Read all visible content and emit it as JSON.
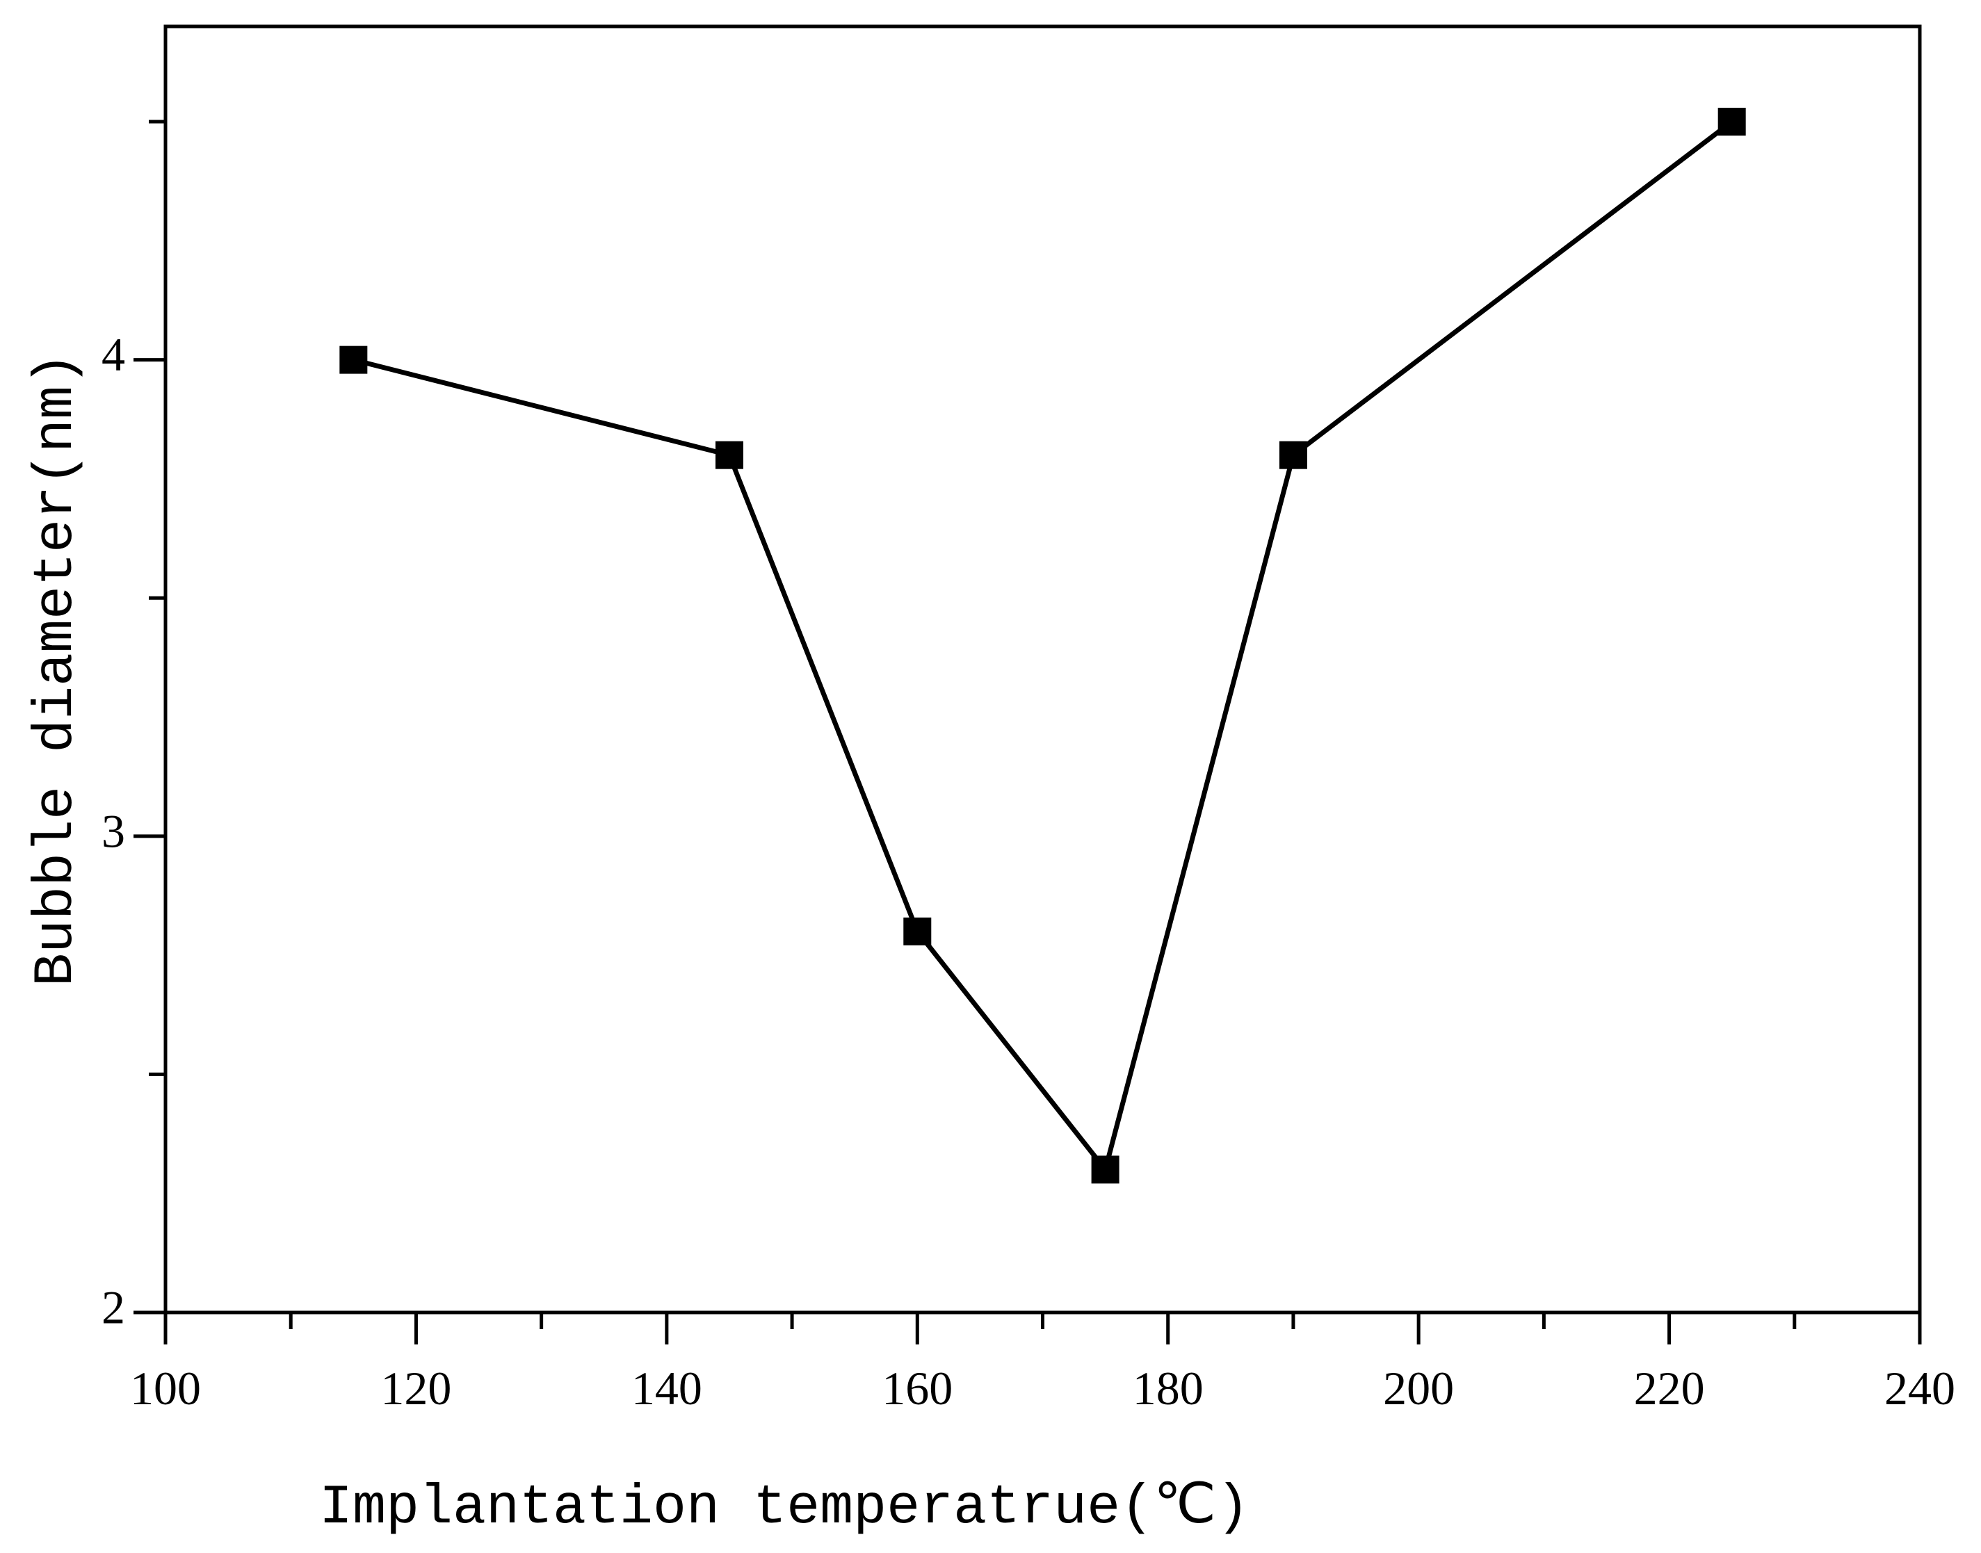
{
  "chart_data": {
    "type": "line",
    "title": "",
    "xlabel": "Implantation temperatrue(℃)",
    "ylabel": "Bubble diameter(nm)",
    "xlim": [
      100,
      240
    ],
    "ylim": [
      2,
      4.7
    ],
    "x_major_ticks": [
      100,
      120,
      140,
      160,
      180,
      200,
      220,
      240
    ],
    "x_minor_ticks": [
      110,
      130,
      150,
      170,
      190,
      210,
      230
    ],
    "y_major_ticks": [
      2,
      3,
      4
    ],
    "y_minor_ticks": [
      2.5,
      3.5,
      4.5
    ],
    "marker": "square",
    "series": [
      {
        "name": "Bubble diameter",
        "color": "#000000",
        "x": [
          115,
          145,
          160,
          175,
          190,
          225
        ],
        "y": [
          4.0,
          3.8,
          2.8,
          2.3,
          3.8,
          4.5
        ]
      }
    ]
  }
}
